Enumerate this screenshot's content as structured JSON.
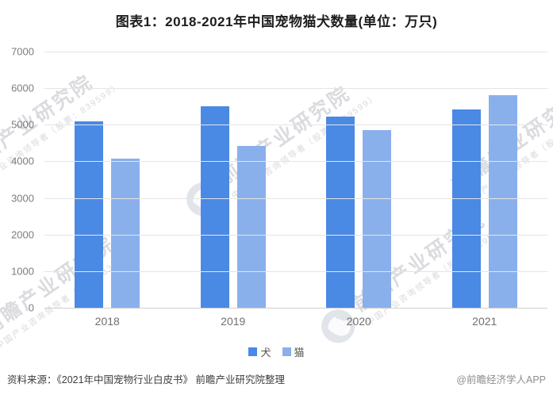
{
  "title": "图表1：2018-2021年中国宠物猫犬数量(单位：万只)",
  "chart_data": {
    "type": "bar",
    "categories": [
      "2018",
      "2019",
      "2020",
      "2021"
    ],
    "series": [
      {
        "name": "犬",
        "color": "#4A89E4",
        "values": [
          5085,
          5503,
          5222,
          5429
        ]
      },
      {
        "name": "猫",
        "color": "#8AB0EC",
        "values": [
          4064,
          4412,
          4862,
          5806
        ]
      }
    ],
    "title": "图表1：2018-2021年中国宠物猫犬数量(单位：万只)",
    "xlabel": "",
    "ylabel": "",
    "ylim": [
      0,
      7000
    ],
    "ytick_step": 1000,
    "grid": true,
    "legend_position": "bottom"
  },
  "footer": {
    "source": "资料来源：《2021年中国宠物行业白皮书》 前瞻产业研究院整理",
    "credit": "@前瞻经济学人APP"
  },
  "watermark": {
    "brand": "前瞻产业研究院",
    "tagline": "中国产业咨询领导者（股票：839599）"
  }
}
